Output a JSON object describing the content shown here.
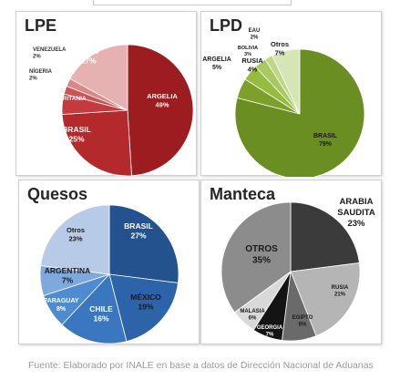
{
  "footer": "Fuente: Elaborado por INALE en base a datos de Dirección Nacional de Aduanas",
  "chart_data": [
    {
      "type": "pie",
      "title": "LPE",
      "slices": [
        {
          "label": "ARGELIA",
          "value": 49,
          "display": "49%",
          "color": "#9c1c1f"
        },
        {
          "label": "BRASIL",
          "value": 25,
          "display": "25%",
          "color": "#b42a2c"
        },
        {
          "label": "MAURITANIA",
          "value": 5,
          "display": "5%",
          "color": "#c33b3e"
        },
        {
          "label": "NÍGERIA",
          "value": 2,
          "display": "2%",
          "color": "#cc5254"
        },
        {
          "label": "VENEZUELA",
          "value": 2,
          "display": "2%",
          "color": "#d9888a"
        },
        {
          "label": "Otros",
          "value": 17,
          "display": "17%",
          "color": "#e6b1b1"
        }
      ]
    },
    {
      "type": "pie",
      "title": "LPD",
      "slices": [
        {
          "label": "BRASIL",
          "value": 79,
          "display": "79%",
          "color": "#6b8e23"
        },
        {
          "label": "ARGELIA",
          "value": 5,
          "display": "5%",
          "color": "#7da02d"
        },
        {
          "label": "RUSIA",
          "value": 4,
          "display": "4%",
          "color": "#95bb3f"
        },
        {
          "label": "BOLIVIA",
          "value": 3,
          "display": "3%",
          "color": "#a9c860"
        },
        {
          "label": "EAU",
          "value": 2,
          "display": "2%",
          "color": "#bfd786"
        },
        {
          "label": "Otros",
          "value": 7,
          "display": "7%",
          "color": "#d5e5b5"
        }
      ]
    },
    {
      "type": "pie",
      "title": "Quesos",
      "slices": [
        {
          "label": "BRASIL",
          "value": 27,
          "display": "27%",
          "color": "#24528f"
        },
        {
          "label": "MÉXICO",
          "value": 19,
          "display": "19%",
          "color": "#2d63a8"
        },
        {
          "label": "CHILE",
          "value": 16,
          "display": "16%",
          "color": "#3a77bf"
        },
        {
          "label": "PARAGUAY",
          "value": 8,
          "display": "8%",
          "color": "#4f8bd1"
        },
        {
          "label": "ARGENTINA",
          "value": 7,
          "display": "7%",
          "color": "#7fa8dc"
        },
        {
          "label": "Otros",
          "value": 23,
          "display": "23%",
          "color": "#b7cbe8"
        }
      ]
    },
    {
      "type": "pie",
      "title": "Manteca",
      "slices": [
        {
          "label": "ARABIA SAUDITA",
          "value": 23,
          "display": "23%",
          "color": "#3b3b3b"
        },
        {
          "label": "RUSIA",
          "value": 21,
          "display": "21%",
          "color": "#b5b5b5"
        },
        {
          "label": "EGIPTO",
          "value": 8,
          "display": "8%",
          "color": "#6a6a6a"
        },
        {
          "label": "GEORGIA",
          "value": 7,
          "display": "7%",
          "color": "#141414"
        },
        {
          "label": "MALASIA",
          "value": 6,
          "display": "6%",
          "color": "#d9d9d9"
        },
        {
          "label": "OTROS",
          "value": 35,
          "display": "35%",
          "color": "#8c8c8c"
        }
      ]
    }
  ]
}
